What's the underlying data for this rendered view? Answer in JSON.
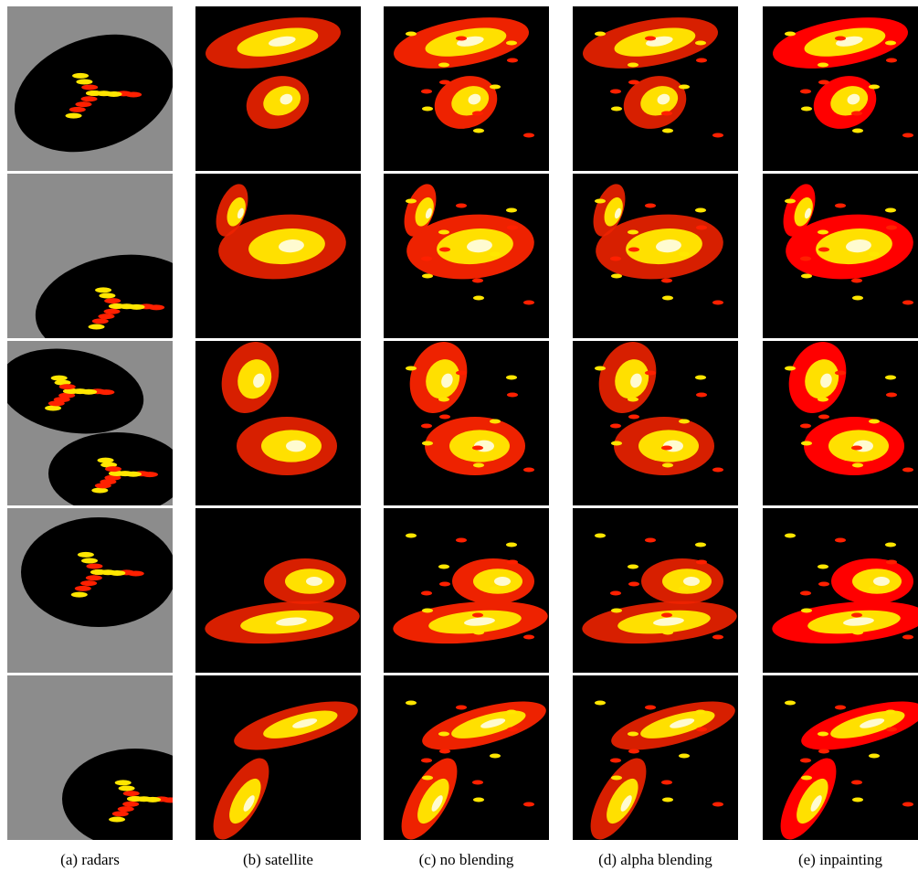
{
  "captions": [
    "(a) radars",
    "(b) satellite",
    "(c) no blending",
    "(d) alpha blending",
    "(e) inpainting"
  ]
}
